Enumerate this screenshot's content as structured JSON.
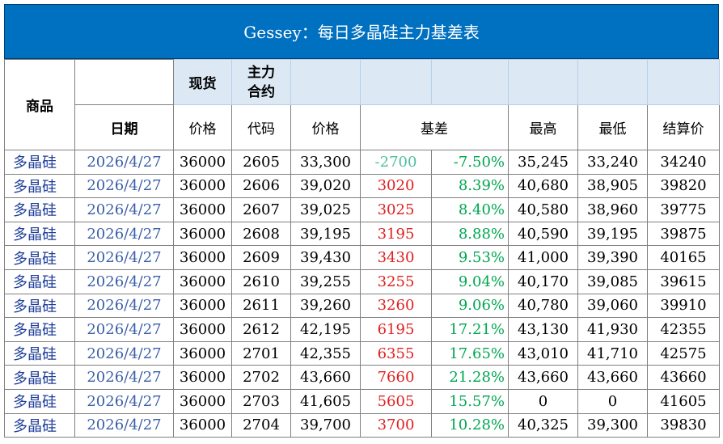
{
  "title": "Gessey：每日多晶硅主力基差表",
  "headers": {
    "product": "商品",
    "spot": "现货",
    "main_contract": "主力\n合约",
    "date": "日期",
    "price": "价格",
    "code": "代码",
    "futures_price": "价格",
    "basis": "基差",
    "high": "最高",
    "low": "最低",
    "settle": "结算价"
  },
  "rows": [
    {
      "product": "多晶硅",
      "date": "2026/4/27",
      "spot": "36000",
      "code": "2605",
      "price": "33,300",
      "basis": "-2700",
      "pct": "-7.50%",
      "high": "35,245",
      "low": "33,240",
      "settle": "34240",
      "sign": "neg"
    },
    {
      "product": "多晶硅",
      "date": "2026/4/27",
      "spot": "36000",
      "code": "2606",
      "price": "39,020",
      "basis": "3020",
      "pct": "8.39%",
      "high": "40,680",
      "low": "38,905",
      "settle": "39820",
      "sign": "pos"
    },
    {
      "product": "多晶硅",
      "date": "2026/4/27",
      "spot": "36000",
      "code": "2607",
      "price": "39,025",
      "basis": "3025",
      "pct": "8.40%",
      "high": "40,580",
      "low": "38,960",
      "settle": "39775",
      "sign": "pos"
    },
    {
      "product": "多晶硅",
      "date": "2026/4/27",
      "spot": "36000",
      "code": "2608",
      "price": "39,195",
      "basis": "3195",
      "pct": "8.88%",
      "high": "40,590",
      "low": "39,195",
      "settle": "39875",
      "sign": "pos"
    },
    {
      "product": "多晶硅",
      "date": "2026/4/27",
      "spot": "36000",
      "code": "2609",
      "price": "39,430",
      "basis": "3430",
      "pct": "9.53%",
      "high": "41,000",
      "low": "39,390",
      "settle": "40165",
      "sign": "pos"
    },
    {
      "product": "多晶硅",
      "date": "2026/4/27",
      "spot": "36000",
      "code": "2610",
      "price": "39,255",
      "basis": "3255",
      "pct": "9.04%",
      "high": "40,170",
      "low": "39,085",
      "settle": "39615",
      "sign": "pos"
    },
    {
      "product": "多晶硅",
      "date": "2026/4/27",
      "spot": "36000",
      "code": "2611",
      "price": "39,260",
      "basis": "3260",
      "pct": "9.06%",
      "high": "40,780",
      "low": "39,060",
      "settle": "39910",
      "sign": "pos"
    },
    {
      "product": "多晶硅",
      "date": "2026/4/27",
      "spot": "36000",
      "code": "2612",
      "price": "42,195",
      "basis": "6195",
      "pct": "17.21%",
      "high": "43,130",
      "low": "41,930",
      "settle": "42355",
      "sign": "pos"
    },
    {
      "product": "多晶硅",
      "date": "2026/4/27",
      "spot": "36000",
      "code": "2701",
      "price": "42,355",
      "basis": "6355",
      "pct": "17.65%",
      "high": "43,010",
      "low": "41,710",
      "settle": "42575",
      "sign": "pos"
    },
    {
      "product": "多晶硅",
      "date": "2026/4/27",
      "spot": "36000",
      "code": "2702",
      "price": "43,660",
      "basis": "7660",
      "pct": "21.28%",
      "high": "43,660",
      "low": "43,660",
      "settle": "43660",
      "sign": "pos"
    },
    {
      "product": "多晶硅",
      "date": "2026/4/27",
      "spot": "36000",
      "code": "2703",
      "price": "41,605",
      "basis": "5605",
      "pct": "15.57%",
      "high": "0",
      "low": "0",
      "settle": "41605",
      "sign": "pos"
    },
    {
      "product": "多晶硅",
      "date": "2026/4/27",
      "spot": "36000",
      "code": "2704",
      "price": "39,700",
      "basis": "3700",
      "pct": "10.28%",
      "high": "40,325",
      "low": "39,300",
      "settle": "39830",
      "sign": "pos"
    }
  ],
  "colors": {
    "title_bg": "#0070c0",
    "header_shade": "#dce9f5",
    "positive_basis": "#e02020",
    "negative_basis": "#4fbf9f",
    "pct": "#00a651"
  }
}
